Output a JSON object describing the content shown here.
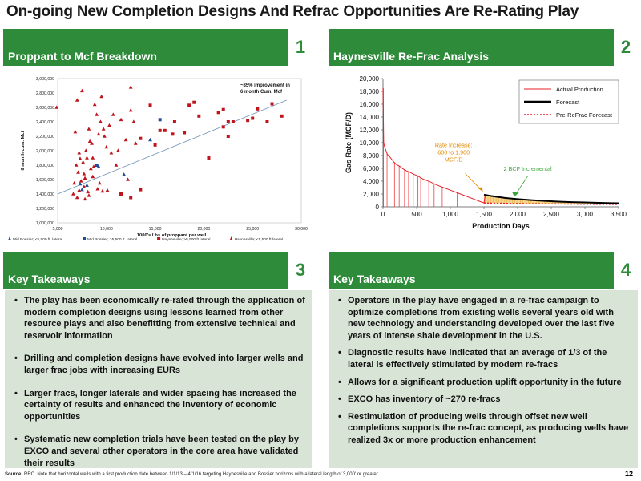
{
  "page": {
    "title": "On-going New Completion Designs And Refrac Opportunities Are Re-Rating Play",
    "page_number": "12",
    "source_label": "Source:",
    "source_text": "RRC. Note that horizontal wells with a first production date between 1/1/13 – 4/1/16 targeting Haynesville and Bossier horizons with a lateral length of 3,000' or greater."
  },
  "panels": {
    "p1": {
      "title": "Proppant to Mcf Breakdown",
      "number": "1"
    },
    "p2": {
      "title": "Haynesville Re-Frac Analysis",
      "number": "2"
    },
    "p3": {
      "title": "Key Takeaways",
      "number": "3"
    },
    "p4": {
      "title": "Key Takeaways",
      "number": "4"
    }
  },
  "takeaways_left": [
    "The play has been economically re-rated through the application of modern completion designs using lessons learned from other resource plays and also benefitting from extensive technical and reservoir information",
    "Drilling and completion designs have evolved into larger wells and larger frac jobs with increasing EURs",
    "Larger fracs, longer laterals and wider spacing has increased the certainty of results and enhanced the inventory of economic opportunities",
    "Systematic new completion trials have been tested on the play by EXCO and several other operators in the core area have validated their results"
  ],
  "takeaways_right": [
    "Operators in the play have engaged in a re-frac campaign to optimize completions from existing wells several years old with new technology and understanding developed over the last five years of intense shale development in the U.S.",
    "Diagnostic results have indicated that an average of 1/3 of the lateral is effectively stimulated by modern re-fracs",
    "Allows for a significant production uplift opportunity in the future",
    "EXCO has inventory of ~270 re-fracs",
    "Restimulation of producing wells through offset new well completions supports the re-frac concept, as producing wells have realized 3x or more production enhancement"
  ],
  "chart_data": [
    {
      "type": "scatter",
      "xlabel": "1000's Lbs of proppant per well",
      "ylabel": "6 month cum. Mcf",
      "xlim": [
        5000,
        30000
      ],
      "ylim": [
        1000000,
        3000000
      ],
      "xticks": [
        5000,
        10000,
        15000,
        20000,
        25000,
        30000
      ],
      "xtick_labels": [
        "5,000",
        "10,000",
        "15,000",
        "20,000",
        "25,000",
        "30,000"
      ],
      "yticks": [
        1000000,
        1200000,
        1400000,
        1600000,
        1800000,
        2000000,
        2200000,
        2400000,
        2600000,
        2800000,
        3000000
      ],
      "ytick_labels": [
        "1,000,000",
        "1,200,000",
        "1,400,000",
        "1,600,000",
        "1,800,000",
        "2,000,000",
        "2,200,000",
        "2,400,000",
        "2,600,000",
        "2,800,000",
        "3,000,000"
      ],
      "annotation": "~85% improvement in 6 month Cum. Mcf",
      "trendline": {
        "x": [
          5000,
          28500
        ],
        "y": [
          1400000,
          2700000
        ]
      },
      "legend_position": "bottom",
      "series": [
        {
          "name": "Mid Bossier; <5,500 ft. lateral",
          "marker": "triangle",
          "color": "#1f4e9a",
          "points": [
            [
              7500,
              1460000
            ],
            [
              8000,
              1520000
            ],
            [
              9200,
              1780000
            ],
            [
              11800,
              1670000
            ],
            [
              14500,
              2150000
            ],
            [
              7300,
              1540000
            ]
          ]
        },
        {
          "name": "Mid Bossier; >5,500 ft. lateral",
          "marker": "square",
          "color": "#1f4e9a",
          "points": [
            [
              9000,
              1800000
            ],
            [
              15500,
              2430000
            ]
          ]
        },
        {
          "name": "Haynesville; >5,500 ft lateral",
          "marker": "square",
          "color": "#c0141c",
          "points": [
            [
              11500,
              1400000
            ],
            [
              12500,
              1350000
            ],
            [
              13500,
              1460000
            ],
            [
              13500,
              2170000
            ],
            [
              14500,
              2630000
            ],
            [
              15000,
              2080000
            ],
            [
              15500,
              2280000
            ],
            [
              16000,
              2280000
            ],
            [
              16800,
              2230000
            ],
            [
              17000,
              2400000
            ],
            [
              18000,
              2250000
            ],
            [
              18500,
              2630000
            ],
            [
              19000,
              2670000
            ],
            [
              19500,
              2480000
            ],
            [
              20500,
              1900000
            ],
            [
              21500,
              2530000
            ],
            [
              22000,
              2330000
            ],
            [
              22500,
              2400000
            ],
            [
              22500,
              2200000
            ],
            [
              23000,
              2400000
            ],
            [
              24500,
              2420000
            ],
            [
              25000,
              2450000
            ],
            [
              25500,
              2580000
            ],
            [
              26500,
              2400000
            ],
            [
              27000,
              2650000
            ],
            [
              28000,
              2480000
            ],
            [
              22000,
              2570000
            ]
          ]
        },
        {
          "name": "Haynesville; <5,500 ft lateral",
          "marker": "triangle",
          "color": "#c0141c",
          "points": [
            [
              4900,
              2600000
            ],
            [
              6800,
              2260000
            ],
            [
              7000,
              2700000
            ],
            [
              7200,
              1970000
            ],
            [
              7500,
              2830000
            ],
            [
              7600,
              1840000
            ],
            [
              7700,
              1680000
            ],
            [
              7800,
              1620000
            ],
            [
              8000,
              1900000
            ],
            [
              8100,
              1430000
            ],
            [
              8200,
              1380000
            ],
            [
              8300,
              2130000
            ],
            [
              8500,
              2100000
            ],
            [
              8600,
              1640000
            ],
            [
              8800,
              2640000
            ],
            [
              9000,
              2500000
            ],
            [
              9200,
              2230000
            ],
            [
              9400,
              2400000
            ],
            [
              9500,
              2750000
            ],
            [
              9700,
              2300000
            ],
            [
              10000,
              2050000
            ],
            [
              10300,
              2350000
            ],
            [
              10500,
              1970000
            ],
            [
              11000,
              1800000
            ],
            [
              11500,
              2430000
            ],
            [
              12000,
              2150000
            ],
            [
              12500,
              2560000
            ],
            [
              12500,
              2880000
            ],
            [
              13000,
              2100000
            ],
            [
              12800,
              2400000
            ],
            [
              7000,
              1350000
            ],
            [
              7200,
              1450000
            ],
            [
              7400,
              1580000
            ],
            [
              7100,
              1700000
            ],
            [
              6900,
              1800000
            ],
            [
              7300,
              1890000
            ],
            [
              7700,
              1500000
            ],
            [
              7900,
              2000000
            ],
            [
              8400,
              1750000
            ],
            [
              8700,
              1780000
            ],
            [
              9100,
              1470000
            ],
            [
              9600,
              1440000
            ],
            [
              10100,
              1450000
            ],
            [
              6700,
              1550000
            ],
            [
              6600,
              1400000
            ],
            [
              8200,
              2300000
            ],
            [
              9800,
              2200000
            ],
            [
              11200,
              2000000
            ],
            [
              12200,
              1600000
            ],
            [
              10700,
              2500000
            ],
            [
              7800,
              1330000
            ],
            [
              8600,
              1900000
            ],
            [
              9300,
              1550000
            ]
          ]
        }
      ]
    },
    {
      "type": "line",
      "ylabel": "Gas Rate (MCF/D)",
      "xlabel": "Production Days",
      "xlim": [
        0,
        3500
      ],
      "ylim": [
        0,
        20000
      ],
      "xticks": [
        0,
        500,
        1000,
        1500,
        2000,
        2500,
        3000,
        3500
      ],
      "xtick_labels": [
        "0",
        "500",
        "1,000",
        "1,500",
        "2,000",
        "2,500",
        "3,000",
        "3,500"
      ],
      "yticks": [
        0,
        2000,
        4000,
        6000,
        8000,
        10000,
        12000,
        14000,
        16000,
        18000,
        20000
      ],
      "ytick_labels": [
        "0",
        "2,000",
        "4,000",
        "6,000",
        "8,000",
        "10,000",
        "12,000",
        "14,000",
        "16,000",
        "18,000",
        "20,000"
      ],
      "legend_position": "top-right",
      "annotations": [
        {
          "text": "Rate Increase: 600 to 1,900 MCF/D",
          "color": "#e08a00"
        },
        {
          "text": "2 BCF Incremental",
          "color": "#3da33d"
        }
      ],
      "series": [
        {
          "name": "Actual Production",
          "color": "#e8222a",
          "x": [
            0,
            10,
            20,
            30,
            40,
            50,
            60,
            80,
            100,
            130,
            160,
            200,
            250,
            300,
            350,
            400,
            450,
            500,
            550,
            600,
            700,
            800,
            900,
            1000,
            1100,
            1200,
            1300,
            1400,
            1450,
            1480,
            1500,
            1520,
            1550,
            1600
          ],
          "y": [
            18500,
            10000,
            9500,
            9200,
            8900,
            8600,
            8300,
            8000,
            7800,
            7400,
            7000,
            6600,
            6300,
            5900,
            5600,
            5400,
            5100,
            4900,
            4600,
            4300,
            3900,
            3400,
            3000,
            2600,
            2200,
            1800,
            1400,
            1000,
            800,
            700,
            600,
            1900,
            1800,
            1700
          ]
        },
        {
          "name": "Forecast",
          "color": "#000000",
          "x": [
            1500,
            1600,
            1800,
            2000,
            2200,
            2400,
            2600,
            2800,
            3000,
            3200,
            3400,
            3500
          ],
          "y": [
            1900,
            1700,
            1400,
            1200,
            1050,
            920,
            820,
            740,
            680,
            620,
            580,
            560
          ]
        },
        {
          "name": "Pre-ReFrac Forecast",
          "color": "#e8222a",
          "x": [
            1500,
            1700,
            1900,
            2100,
            2300,
            2500,
            2700,
            2900,
            3100,
            3300,
            3500
          ],
          "y": [
            600,
            560,
            530,
            500,
            480,
            460,
            440,
            420,
            400,
            390,
            380
          ]
        }
      ],
      "dropouts_x": [
        60,
        170,
        240,
        320,
        380,
        450,
        520,
        560,
        680,
        760,
        880,
        1100
      ]
    }
  ]
}
